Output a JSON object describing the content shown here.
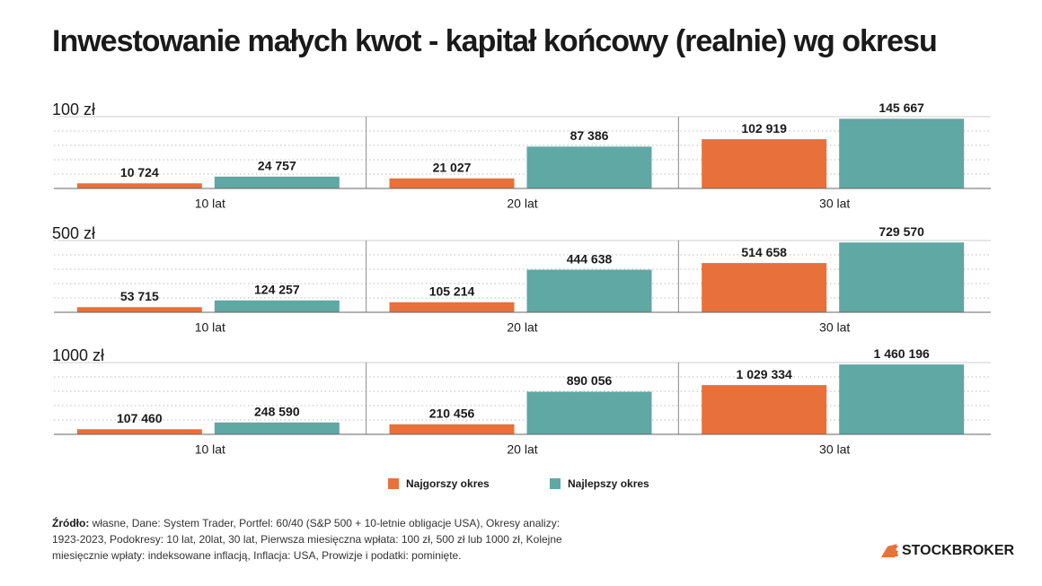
{
  "title": "Inwestowanie małych kwot - kapitał końcowy (realnie) wg okresu",
  "chart_data": [
    {
      "type": "bar",
      "title": "100 zł",
      "categories": [
        "10 lat",
        "20 lat",
        "30 lat"
      ],
      "ylim": [
        0,
        150000
      ],
      "grid": true,
      "series": [
        {
          "name": "Najgorszy okres",
          "color": "#e8703a",
          "values": [
            10724,
            21027,
            102919
          ],
          "value_labels": [
            "10 724",
            "21 027",
            "102 919"
          ]
        },
        {
          "name": "Najlepszy okres",
          "color": "#5fa8a3",
          "values": [
            24757,
            87386,
            145667
          ],
          "value_labels": [
            "24 757",
            "87 386",
            "145 667"
          ]
        }
      ]
    },
    {
      "type": "bar",
      "title": "500 zł",
      "categories": [
        "10 lat",
        "20 lat",
        "30 lat"
      ],
      "ylim": [
        0,
        750000
      ],
      "grid": true,
      "series": [
        {
          "name": "Najgorszy okres",
          "color": "#e8703a",
          "values": [
            53715,
            105214,
            514658
          ],
          "value_labels": [
            "53 715",
            "105 214",
            "514 658"
          ]
        },
        {
          "name": "Najlepszy okres",
          "color": "#5fa8a3",
          "values": [
            124257,
            444638,
            729570
          ],
          "value_labels": [
            "124 257",
            "444 638",
            "729 570"
          ]
        }
      ]
    },
    {
      "type": "bar",
      "title": "1000 zł",
      "categories": [
        "10 lat",
        "20 lat",
        "30 lat"
      ],
      "ylim": [
        0,
        1500000
      ],
      "grid": true,
      "series": [
        {
          "name": "Najgorszy okres",
          "color": "#e8703a",
          "values": [
            107460,
            210456,
            1029334
          ],
          "value_labels": [
            "107 460",
            "210 456",
            "1 029 334"
          ]
        },
        {
          "name": "Najlepszy okres",
          "color": "#5fa8a3",
          "values": [
            248590,
            890056,
            1460196
          ],
          "value_labels": [
            "248 590",
            "890 056",
            "1 460 196"
          ]
        }
      ]
    }
  ],
  "source": {
    "label": "Źródło:",
    "text": "własne, Dane: System Trader, Portfel: 60/40 (S&P 500 + 10-letnie obligacje USA), Okresy analizy: 1923-2023, Podokresy: 10 lat, 20lat, 30 lat, Pierwsza miesięczna wpłata: 100 zł, 500 zł lub 1000 zł, Kolejne miesięcznie wpłaty: indeksowane inflacją, Inflacja: USA, Prowizje i podatki: pominięte."
  },
  "brand": "STOCKBROKER"
}
